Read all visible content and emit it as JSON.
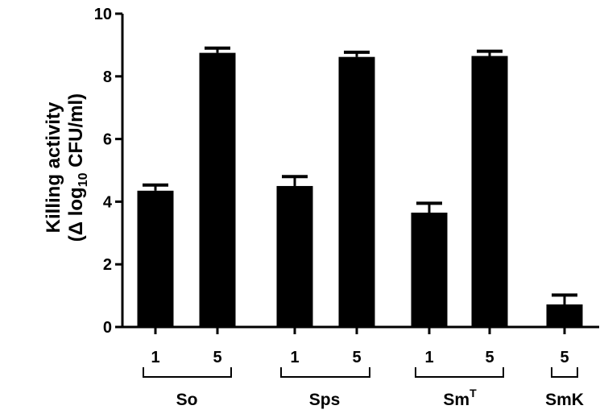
{
  "chart_data": {
    "type": "bar",
    "ylabel_line1": "Killing activity",
    "ylabel_line2": {
      "prefix": "(Δ log",
      "subscript": "10",
      "suffix": " CFU/ml)"
    },
    "ylim": [
      0,
      10
    ],
    "yticks": [
      "0",
      "2",
      "4",
      "6",
      "8",
      "10"
    ],
    "grid": false,
    "legend": "none",
    "bar_color": "#000000",
    "bars": [
      {
        "group": "So",
        "label": "1",
        "value": 4.35,
        "error": 0.18
      },
      {
        "group": "So",
        "label": "5",
        "value": 8.75,
        "error": 0.15
      },
      {
        "group": "Sps",
        "label": "1",
        "value": 4.5,
        "error": 0.3
      },
      {
        "group": "Sps",
        "label": "5",
        "value": 8.62,
        "error": 0.15
      },
      {
        "group": "SmT",
        "label": "1",
        "value": 3.65,
        "error": 0.3
      },
      {
        "group": "SmT",
        "label": "5",
        "value": 8.65,
        "error": 0.15
      },
      {
        "group": "SmK",
        "label": "5",
        "value": 0.72,
        "error": 0.3
      }
    ],
    "groups": [
      {
        "id": "So",
        "text": "So",
        "superscript": ""
      },
      {
        "id": "Sps",
        "text": "Sps",
        "superscript": ""
      },
      {
        "id": "SmT",
        "text": "Sm",
        "superscript": "T"
      },
      {
        "id": "SmK",
        "text": "SmK",
        "superscript": ""
      }
    ]
  }
}
